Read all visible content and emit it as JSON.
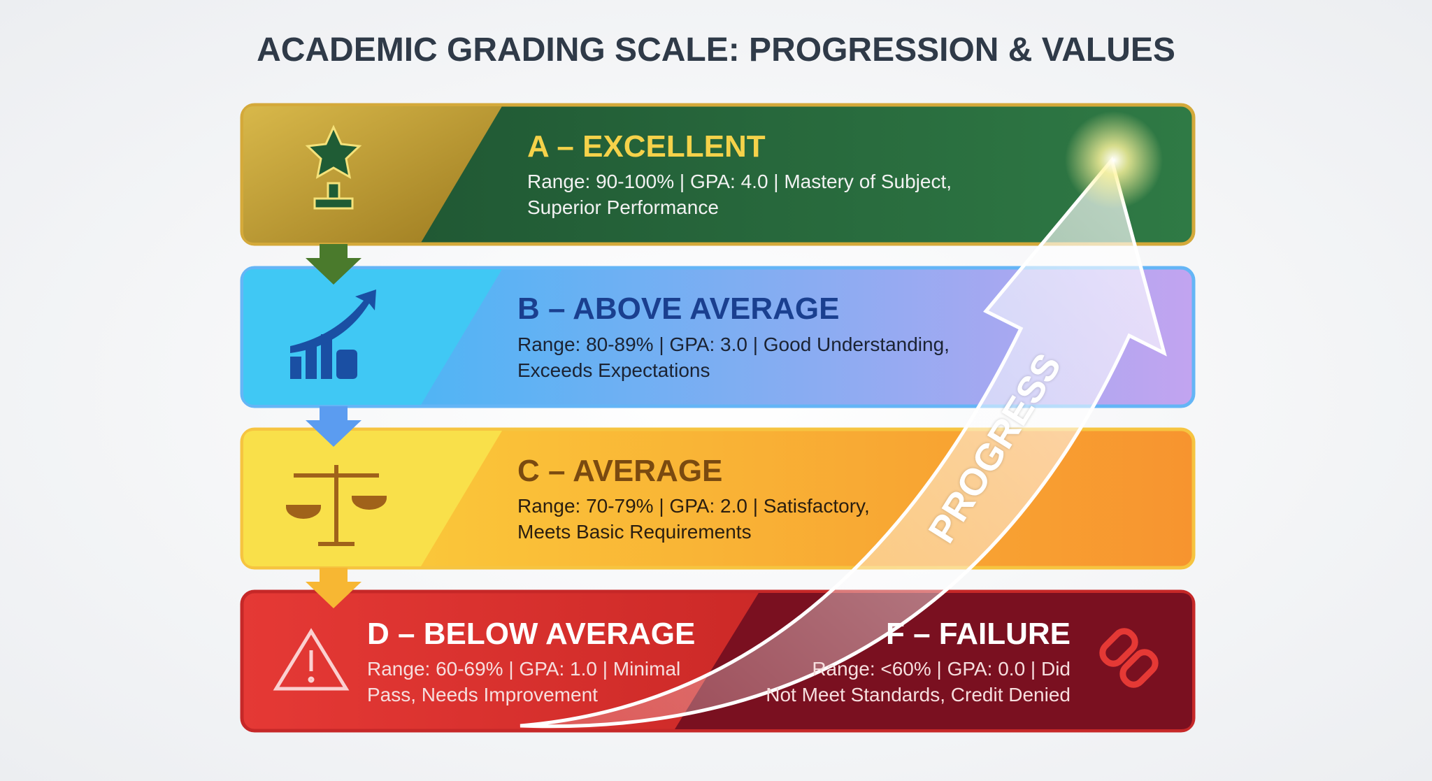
{
  "title": "ACADEMIC GRADING SCALE: PROGRESSION & VALUES",
  "grades": [
    {
      "heading": "A – EXCELLENT",
      "lines": [
        "Range: 90-100% | GPA: 4.0 | Mastery of Subject,",
        "Superior Performance"
      ]
    },
    {
      "heading": "B – ABOVE AVERAGE",
      "lines": [
        "Range: 80-89% | GPA: 3.0 | Good Understanding,",
        "Exceeds Expectations"
      ]
    },
    {
      "heading": "C – AVERAGE",
      "lines": [
        "Range: 70-79% | GPA: 2.0 | Satisfactory,",
        "Meets Basic Requirements"
      ]
    },
    {
      "heading": "D – BELOW AVERAGE",
      "lines": [
        "Range: 60-69% | GPA: 1.0 | Minimal",
        "Pass, Needs Improvement"
      ]
    },
    {
      "heading": "F – FAILURE",
      "lines": [
        "Range: <60% | GPA: 0.0 | Did",
        "Not Meet Standards, Credit Denied"
      ]
    }
  ],
  "progress_label": "PROGRESS"
}
